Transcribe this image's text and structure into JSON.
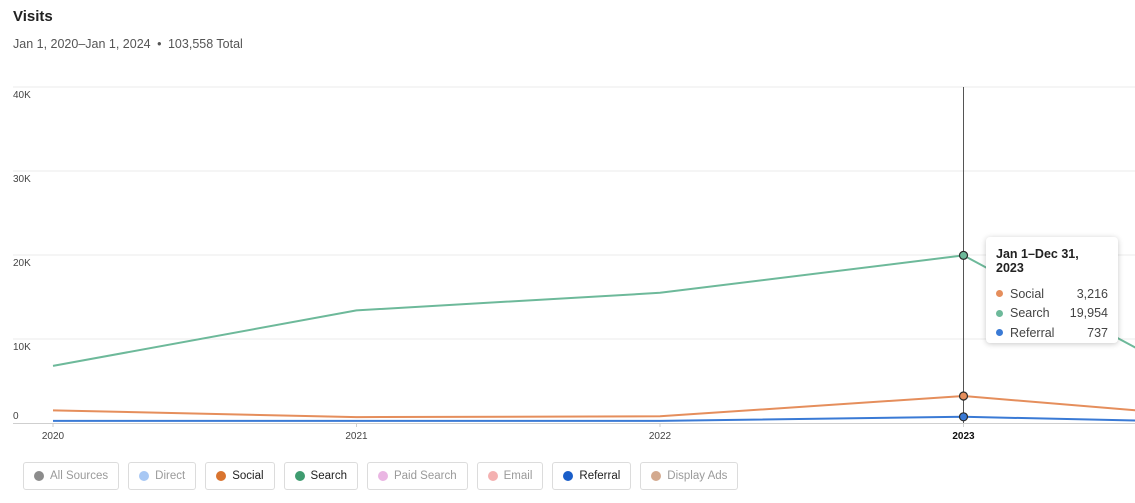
{
  "header": {
    "title": "Visits",
    "date_range": "Jan 1, 2020–Jan 1, 2024",
    "separator": "•",
    "total": "103,558 Total"
  },
  "chart_data": {
    "type": "line",
    "title": "Visits",
    "x": [
      2020,
      2021,
      2022,
      2023,
      2023.57
    ],
    "x_ticks": [
      "2020",
      "2021",
      "2022",
      "2023"
    ],
    "highlighted_x_tick": "2023",
    "y_ticks": [
      {
        "value": 0,
        "label": "0"
      },
      {
        "value": 10000,
        "label": "10K"
      },
      {
        "value": 20000,
        "label": "20K"
      },
      {
        "value": 30000,
        "label": "30K"
      },
      {
        "value": 40000,
        "label": "40K"
      }
    ],
    "ylim": [
      0,
      40000
    ],
    "grid": true,
    "series": [
      {
        "name": "Search",
        "color": "#6db99a",
        "values": [
          6800,
          13400,
          15500,
          19954,
          8900
        ]
      },
      {
        "name": "Social",
        "color": "#e58e5c",
        "values": [
          1500,
          700,
          800,
          3216,
          1500
        ]
      },
      {
        "name": "Referral",
        "color": "#3a7ad5",
        "values": [
          250,
          250,
          250,
          737,
          300
        ]
      }
    ],
    "crosshair_x": 2023,
    "markers": [
      {
        "series": "Search",
        "x": 2023,
        "value": 19954
      },
      {
        "series": "Social",
        "x": 2023,
        "value": 3216
      },
      {
        "series": "Referral",
        "x": 2023,
        "value": 737
      }
    ]
  },
  "tooltip": {
    "title": "Jan 1–Dec 31, 2023",
    "rows": [
      {
        "name": "Social",
        "value": "3,216",
        "color": "#e58e5c"
      },
      {
        "name": "Search",
        "value": "19,954",
        "color": "#6db99a"
      },
      {
        "name": "Referral",
        "value": "737",
        "color": "#3a7ad5"
      }
    ]
  },
  "legend": {
    "items": [
      {
        "label": "All Sources",
        "color": "#8c8c8c",
        "active": false
      },
      {
        "label": "Direct",
        "color": "#a8c8f4",
        "active": false
      },
      {
        "label": "Social",
        "color": "#d9742f",
        "active": true
      },
      {
        "label": "Search",
        "color": "#3f9c70",
        "active": true
      },
      {
        "label": "Paid Search",
        "color": "#eab6e3",
        "active": false
      },
      {
        "label": "Email",
        "color": "#f4b1b1",
        "active": false
      },
      {
        "label": "Referral",
        "color": "#1a5ec9",
        "active": true
      },
      {
        "label": "Display Ads",
        "color": "#d3a98e",
        "active": false
      }
    ]
  }
}
